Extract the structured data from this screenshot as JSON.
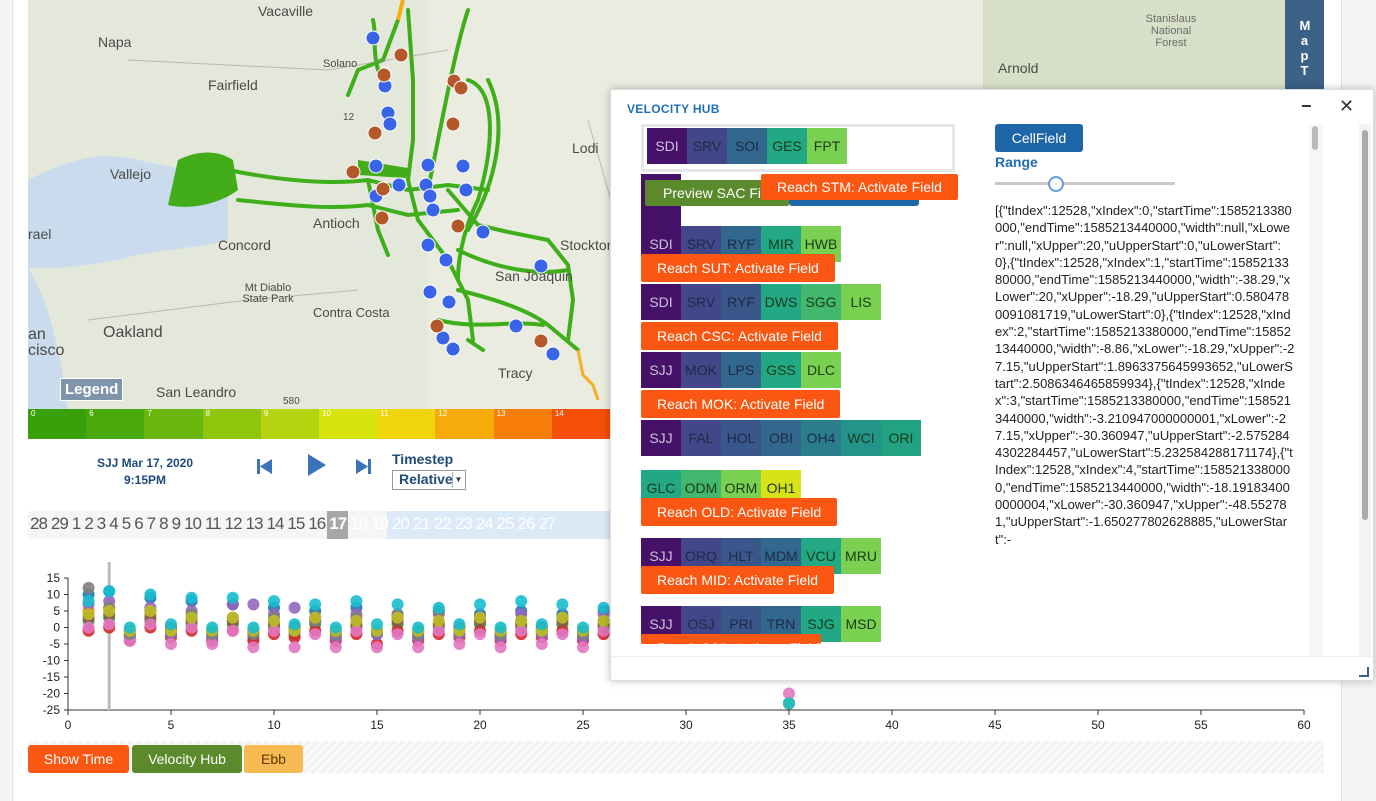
{
  "map": {
    "places": [
      "Vacaville",
      "Napa",
      "Fairfield",
      "Vallejo",
      "Concord",
      "Antioch",
      "Lodi",
      "Stockton",
      "San Joaquin",
      "Mt Diablo State Park",
      "Contra Costa",
      "Oakland",
      "San Leandro",
      "Tracy",
      "Arnold",
      "Stanislaus National Forest",
      "Solano",
      "rael",
      "an",
      "cisco"
    ],
    "road_labels": [
      "12",
      "580"
    ],
    "legend_label": "Legend",
    "tab_label": "Map T",
    "colorbar": {
      "ticks": [
        "0",
        "6",
        "7",
        "8",
        "9",
        "10",
        "11",
        "12",
        "13",
        "14"
      ],
      "colors": [
        "#38a10a",
        "#4aa90b",
        "#6ab60c",
        "#8fc60d",
        "#b3d40e",
        "#d6e30f",
        "#f0d50e",
        "#f6ab0b",
        "#f77f09",
        "#f54f07"
      ]
    }
  },
  "timestep": {
    "date": "SJJ Mar 17, 2020",
    "time": "9:15PM",
    "label": "Timestep",
    "selected": "Relative",
    "prev_icon": "skip-back-icon",
    "play_icon": "play-icon",
    "next_icon": "skip-forward-icon"
  },
  "days": {
    "before": [
      "28",
      "29",
      "1",
      "2",
      "3",
      "4",
      "5",
      "6",
      "7",
      "8",
      "9",
      "10",
      "11",
      "12",
      "13",
      "14",
      "15",
      "16"
    ],
    "current": "17",
    "after": [
      "18",
      "19",
      "20",
      "21",
      "22",
      "23",
      "24",
      "25",
      "26",
      "27"
    ]
  },
  "chart_data": {
    "type": "scatter",
    "xlim": [
      0,
      60
    ],
    "ylim": [
      -25,
      15
    ],
    "xticks": [
      "0",
      "5",
      "10",
      "15",
      "20",
      "25",
      "30",
      "35",
      "40",
      "45",
      "50",
      "55",
      "60"
    ],
    "yticks": [
      "15",
      "10",
      "5",
      "0",
      "-5",
      "-10",
      "-15",
      "-20",
      "-25"
    ],
    "x": [
      1,
      2,
      3,
      4,
      5,
      6,
      7,
      8,
      9,
      10,
      11,
      12,
      13,
      14,
      15,
      16,
      17,
      18,
      19,
      20,
      21,
      22,
      23,
      24,
      25,
      26,
      27,
      35
    ],
    "series": [
      {
        "color": "#1f77b4",
        "values": [
          10,
          11,
          -3,
          9,
          -2,
          8,
          -3,
          7,
          -3,
          6,
          -2,
          5,
          -3,
          6,
          -2,
          4,
          -3,
          5,
          -2,
          4,
          -3,
          5,
          -2,
          4,
          -3,
          5,
          -2,
          -23
        ]
      },
      {
        "color": "#ff7f0e",
        "values": [
          5,
          6,
          -1,
          4,
          0,
          3,
          -1,
          2,
          -1,
          1,
          0,
          2,
          -1,
          1,
          -1,
          2,
          -1,
          1,
          0,
          2,
          -1,
          1,
          0,
          2,
          -1,
          1,
          0,
          -23
        ]
      },
      {
        "color": "#2ca02c",
        "values": [
          2,
          3,
          -2,
          2,
          -1,
          1,
          -2,
          1,
          -2,
          0,
          -1,
          1,
          -2,
          0,
          -1,
          1,
          -2,
          0,
          -1,
          1,
          -2,
          0,
          -1,
          1,
          -2,
          0,
          -1,
          -23
        ]
      },
      {
        "color": "#d62728",
        "values": [
          -1,
          0,
          -4,
          0,
          -3,
          -1,
          -4,
          -1,
          -4,
          -2,
          -3,
          -1,
          -4,
          -2,
          -5,
          -1,
          -4,
          -2,
          -3,
          -1,
          -4,
          -2,
          -3,
          -1,
          -4,
          -2,
          -3,
          -23
        ]
      },
      {
        "color": "#9467bd",
        "values": [
          7,
          8,
          -3,
          6,
          -2,
          5,
          -3,
          7,
          7,
          4,
          6,
          3,
          -3,
          4,
          -2,
          3,
          -3,
          4,
          -2,
          3,
          -3,
          4,
          -2,
          3,
          -3,
          4,
          -2,
          -23
        ]
      },
      {
        "color": "#8c564b",
        "values": [
          3,
          4,
          -1,
          3,
          0,
          2,
          -1,
          2,
          -1,
          1,
          0,
          2,
          -1,
          1,
          -1,
          2,
          -1,
          1,
          0,
          2,
          -1,
          1,
          0,
          2,
          -1,
          1,
          0,
          -23
        ]
      },
      {
        "color": "#e377c2",
        "values": [
          0,
          1,
          -4,
          1,
          -5,
          0,
          -5,
          -1,
          -6,
          -1,
          -6,
          -2,
          -6,
          -1,
          -6,
          -2,
          -6,
          -1,
          -5,
          -2,
          -6,
          -1,
          -5,
          -2,
          -6,
          -1,
          -5,
          -20
        ]
      },
      {
        "color": "#7f7f7f",
        "values": [
          12,
          6,
          -2,
          5,
          -1,
          4,
          -2,
          3,
          -2,
          3,
          -1,
          2,
          -2,
          3,
          -1,
          4,
          -2,
          5,
          -1,
          3,
          -2,
          2,
          -1,
          3,
          -2,
          2,
          -1,
          -23
        ]
      },
      {
        "color": "#bcbd22",
        "values": [
          4,
          5,
          -1,
          5,
          -1,
          3,
          -1,
          3,
          -1,
          2,
          -1,
          3,
          -1,
          2,
          -1,
          3,
          -1,
          2,
          -1,
          3,
          -1,
          2,
          -1,
          3,
          -1,
          2,
          -1,
          -23
        ]
      },
      {
        "color": "#17becf",
        "values": [
          8,
          11,
          0,
          10,
          1,
          9,
          0,
          9,
          0,
          8,
          1,
          7,
          0,
          8,
          1,
          7,
          0,
          6,
          1,
          7,
          0,
          8,
          1,
          7,
          0,
          6,
          1,
          -23
        ]
      }
    ],
    "cursor_x": 2
  },
  "buttons": {
    "show_time": "Show Time",
    "velocity_hub": "Velocity Hub",
    "ebb": "Ebb"
  },
  "hub": {
    "title": "VELOCITY HUB",
    "minimize_icon": "minimize-icon",
    "close_icon": "close-icon",
    "preview_label": "Preview SAC Fie",
    "cellfield_label": "CellField",
    "range_label": "Range",
    "range_value": 0.35,
    "rows": [
      {
        "cells": [
          {
            "t": "SDI",
            "c": "#461169"
          },
          {
            "t": "SRV",
            "c": "#44468a"
          },
          {
            "t": "SOI",
            "c": "#32688e"
          },
          {
            "t": "GES",
            "c": "#22a884"
          },
          {
            "t": "FPT",
            "c": "#7ad151"
          }
        ]
      },
      {
        "cells": [
          {
            "t": "SDI",
            "c": "#461169"
          },
          {
            "t": "SRV",
            "c": "#44468a"
          },
          {
            "t": "RYF",
            "c": "#32688e"
          },
          {
            "t": "MIR",
            "c": "#22a884"
          },
          {
            "t": "HWB",
            "c": "#7ad151"
          }
        ]
      },
      {
        "cells": [
          {
            "t": "SDI",
            "c": "#461169"
          },
          {
            "t": "SRV",
            "c": "#44468a"
          },
          {
            "t": "RYF",
            "c": "#3a578c"
          },
          {
            "t": "DWS",
            "c": "#22a884"
          },
          {
            "t": "SGG",
            "c": "#41b86e"
          },
          {
            "t": "LIS",
            "c": "#7ad151"
          }
        ]
      },
      {
        "cells": [
          {
            "t": "SJJ",
            "c": "#461169"
          },
          {
            "t": "MOK",
            "c": "#44468a"
          },
          {
            "t": "LPS",
            "c": "#32688e"
          },
          {
            "t": "GSS",
            "c": "#22a884"
          },
          {
            "t": "DLC",
            "c": "#7ad151"
          }
        ]
      },
      {
        "cells": [
          {
            "t": "SJJ",
            "c": "#461169"
          },
          {
            "t": "FAL",
            "c": "#44468a"
          },
          {
            "t": "HOL",
            "c": "#3a578c"
          },
          {
            "t": "OBI",
            "c": "#32688e"
          },
          {
            "t": "OH4",
            "c": "#2c7d8c"
          },
          {
            "t": "WCI",
            "c": "#23948a"
          },
          {
            "t": "ORI",
            "c": "#20a283"
          }
        ]
      },
      {
        "cells": [
          {
            "t": "GLC",
            "c": "#22a884"
          },
          {
            "t": "ODM",
            "c": "#41b86e"
          },
          {
            "t": "ORM",
            "c": "#7ad151"
          },
          {
            "t": "OH1",
            "c": "#d8e219"
          }
        ]
      },
      {
        "cells": [
          {
            "t": "SJJ",
            "c": "#461169"
          },
          {
            "t": "ORQ",
            "c": "#44468a"
          },
          {
            "t": "HLT",
            "c": "#3a578c"
          },
          {
            "t": "MDM",
            "c": "#32688e"
          },
          {
            "t": "VCU",
            "c": "#22a884"
          },
          {
            "t": "MRU",
            "c": "#7ad151"
          }
        ]
      },
      {
        "cells": [
          {
            "t": "SJJ",
            "c": "#461169"
          },
          {
            "t": "OSJ",
            "c": "#44468a"
          },
          {
            "t": "PRI",
            "c": "#3a578c"
          },
          {
            "t": "TRN",
            "c": "#32688e"
          },
          {
            "t": "SJG",
            "c": "#22a884"
          },
          {
            "t": "MSD",
            "c": "#7ad151"
          }
        ]
      }
    ],
    "reach_buttons": [
      "Reach STM: Activate Field",
      "Reach SUT: Activate Field",
      "Reach CSC: Activate Field",
      "Reach MOK: Activate Field",
      "Reach OLD: Activate Field",
      "Reach MID: Activate Field",
      "Reach SJG: Activate Field"
    ],
    "json_text": "[{\"tIndex\":12528,\"xIndex\":0,\"startTime\":1585213380000,\"endTime\":1585213440000,\"width\":null,\"xLower\":null,\"xUpper\":20,\"uUpperStart\":0,\"uLowerStart\":0},{\"tIndex\":12528,\"xIndex\":1,\"startTime\":1585213380000,\"endTime\":1585213440000,\"width\":-38.29,\"xLower\":20,\"xUpper\":-18.29,\"uUpperStart\":0.5804780091081719,\"uLowerStart\":0},{\"tIndex\":12528,\"xIndex\":2,\"startTime\":1585213380000,\"endTime\":1585213440000,\"width\":-8.86,\"xLower\":-18.29,\"xUpper\":-27.15,\"uUpperStart\":1.8963375645993652,\"uLowerStart\":2.5086346465859934},{\"tIndex\":12528,\"xIndex\":3,\"startTime\":1585213380000,\"endTime\":1585213440000,\"width\":-3.210947000000001,\"xLower\":-27.15,\"xUpper\":-30.360947,\"uUpperStart\":-2.5752844302284457,\"uLowerStart\":5.232584288171174},{\"tIndex\":12528,\"xIndex\":4,\"startTime\":1585213380000,\"endTime\":1585213440000,\"width\":-18.191834000000004,\"xLower\":-30.360947,\"xUpper\":-48.552781,\"uUpperStart\":-1.650277802628885,\"uLowerStart\":-"
  }
}
